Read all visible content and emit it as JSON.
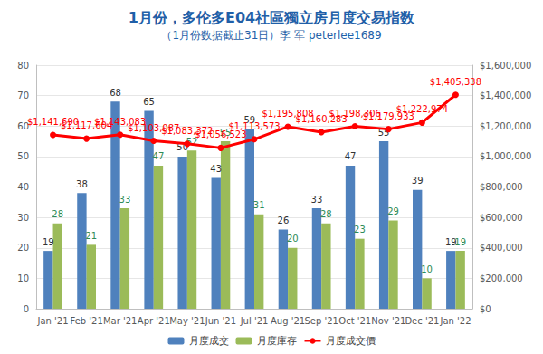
{
  "chart_data": {
    "type": "bar",
    "title": "1月份，多伦多E04社區獨立房月度交易指数",
    "subtitle": "（1月份数据截止31日）李 军 peterlee1689",
    "categories": [
      "Jan '21",
      "Feb '21",
      "Mar '21",
      "Apr '21",
      "May '21",
      "Jun '21",
      "Jul '21",
      "Aug '21",
      "Sep '21",
      "Oct '21",
      "Nov '21",
      "Dec '21",
      "Jan '22"
    ],
    "series": [
      {
        "name": "月度成交",
        "type": "bar",
        "color": "#4f81bd",
        "values": [
          19,
          38,
          68,
          65,
          50,
          43,
          59,
          26,
          33,
          47,
          55,
          39,
          19
        ]
      },
      {
        "name": "月度庫存",
        "type": "bar",
        "color": "#9bbb59",
        "values": [
          28,
          21,
          33,
          47,
          52,
          55,
          31,
          20,
          28,
          23,
          29,
          10,
          19
        ]
      },
      {
        "name": "月度成交價",
        "type": "line",
        "axis": "y2",
        "color": "#ff0000",
        "marker": "circle",
        "line_style": "solid",
        "values": [
          1141690,
          1117604,
          1143083,
          1103087,
          1083372,
          1056523,
          1113573,
          1195808,
          1160283,
          1198306,
          1179933,
          1222974,
          1405338
        ],
        "value_labels": [
          "$1,141,690",
          "$1,117,604",
          "$1,143,083",
          "$1,103,087",
          "$1,083,372",
          "$1,056,523",
          "$1,113,573",
          "$1,195,808",
          "$1,160,283",
          "$1,198,306",
          "$1,179,933",
          "$1,222,974",
          "$1,405,338"
        ]
      }
    ],
    "ylim": [
      0,
      80
    ],
    "yticks": [
      0,
      10,
      20,
      30,
      40,
      50,
      60,
      70,
      80
    ],
    "y2lim": [
      0,
      1600000
    ],
    "y2ticks": [
      {
        "value": 0,
        "label": "$0"
      },
      {
        "value": 200000,
        "label": "$200,000"
      },
      {
        "value": 400000,
        "label": "$400,000"
      },
      {
        "value": 600000,
        "label": "$600,000"
      },
      {
        "value": 800000,
        "label": "$800,000"
      },
      {
        "value": 1000000,
        "label": "$1,000,000"
      },
      {
        "value": 1200000,
        "label": "$1,200,000"
      },
      {
        "value": 1400000,
        "label": "$1,400,000"
      },
      {
        "value": 1600000,
        "label": "$1,600,000"
      }
    ],
    "grid": true,
    "legend": "bottom",
    "data_labels": true
  }
}
